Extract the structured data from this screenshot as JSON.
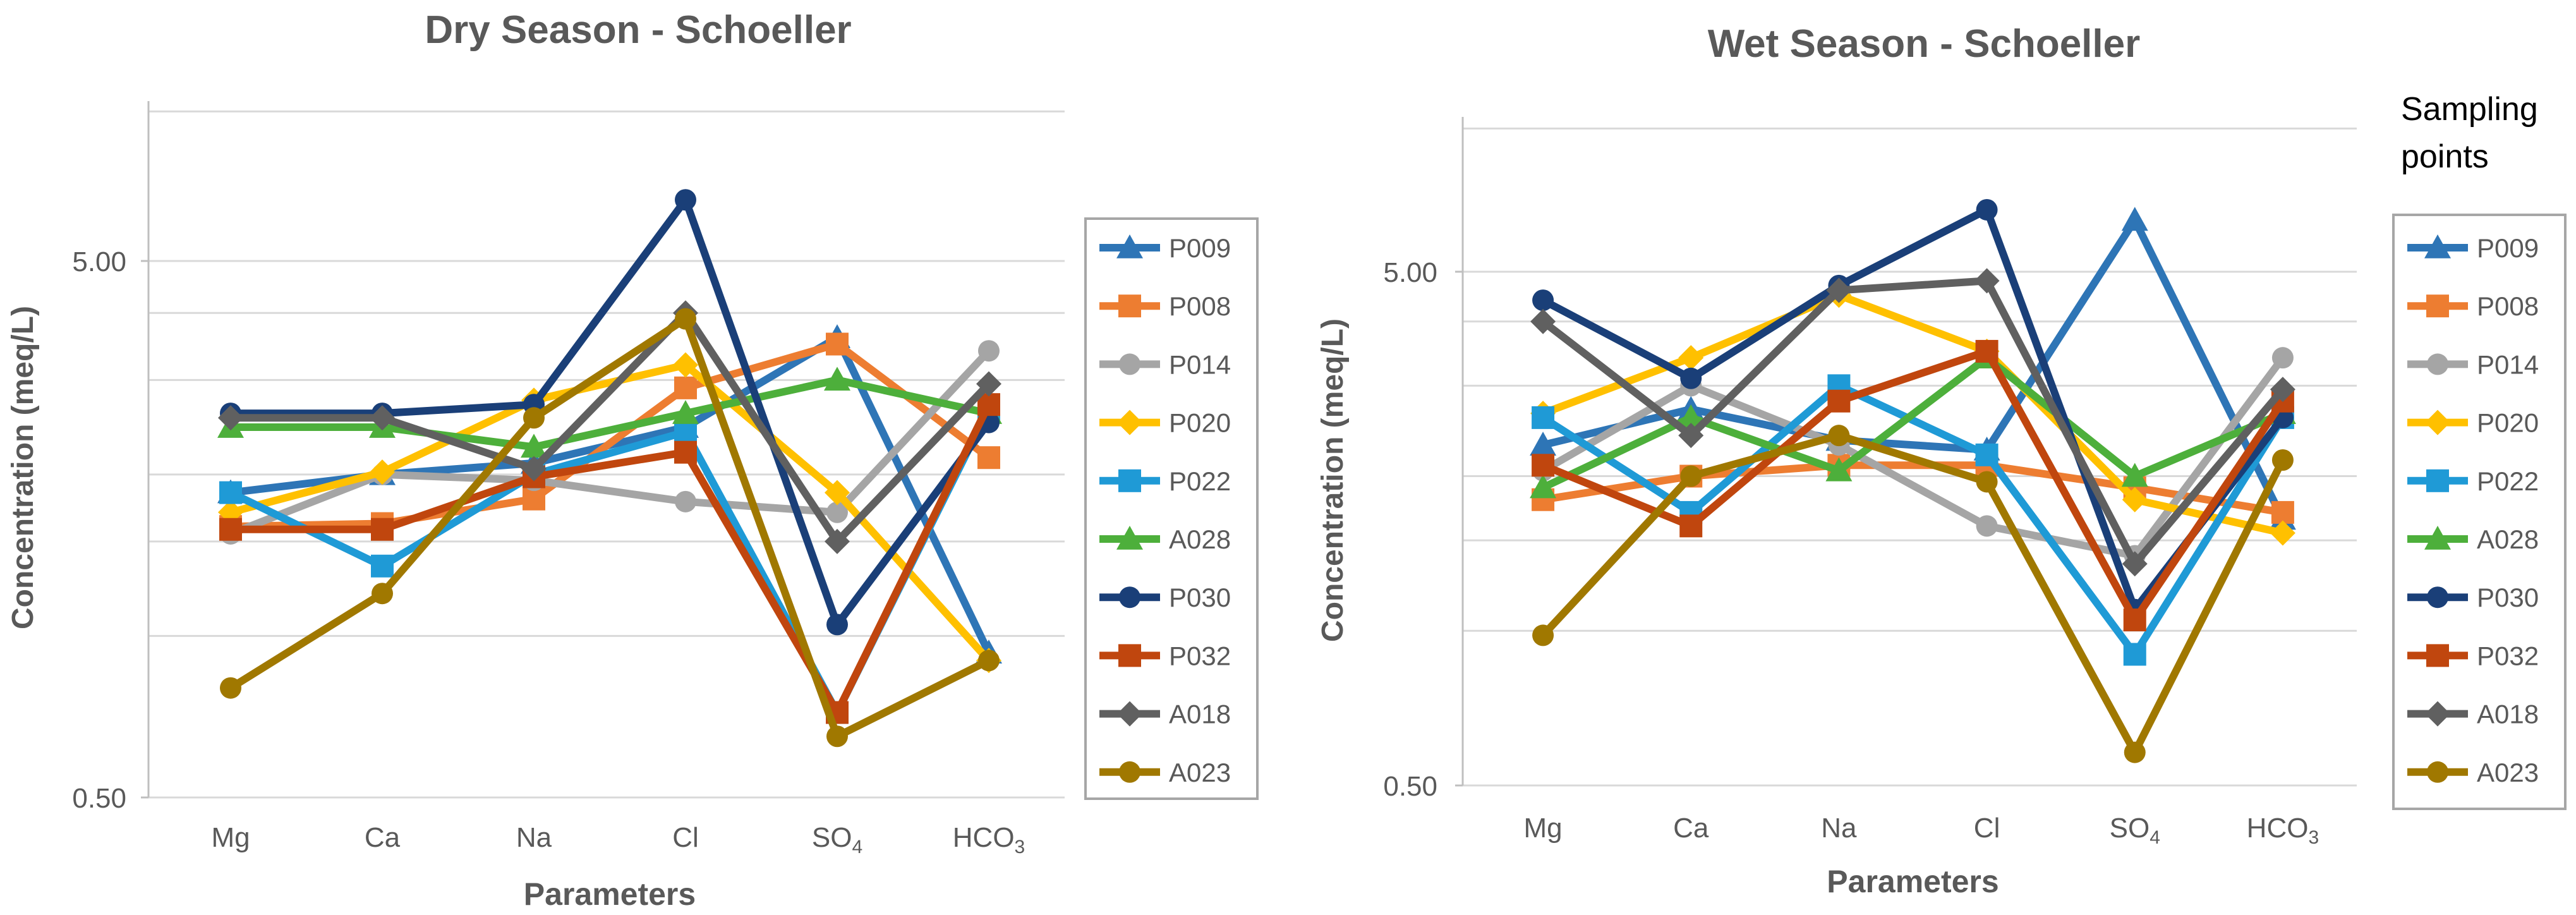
{
  "legend_header": "Sampling points",
  "chart_data": [
    {
      "type": "line",
      "title": "Dry Season - Schoeller",
      "xlabel": "Parameters",
      "ylabel": "Concentration (meq/L)",
      "yscale": "log",
      "ylim": [
        0.5,
        10
      ],
      "yticks": [
        0.5,
        5
      ],
      "ytick_labels": [
        "0.50",
        "5.00"
      ],
      "categories": [
        "Mg",
        "Ca",
        "Na",
        "Cl",
        "SO",
        "HCO"
      ],
      "category_subscripts": [
        "",
        "",
        "",
        "",
        "4",
        "3"
      ],
      "series": [
        {
          "name": "P009",
          "color": "#2e75b6",
          "marker": "triangle",
          "values": [
            1.85,
            2.0,
            2.1,
            2.45,
            3.6,
            0.93
          ]
        },
        {
          "name": "P008",
          "color": "#ed7d31",
          "marker": "square",
          "values": [
            1.6,
            1.62,
            1.8,
            2.9,
            3.5,
            2.15
          ]
        },
        {
          "name": "P014",
          "color": "#a5a5a5",
          "marker": "circle",
          "values": [
            1.55,
            2.0,
            1.95,
            1.78,
            1.7,
            3.4
          ]
        },
        {
          "name": "P020",
          "color": "#ffc000",
          "marker": "diamond",
          "values": [
            1.7,
            2.02,
            2.75,
            3.2,
            1.85,
            0.9
          ]
        },
        {
          "name": "P022",
          "color": "#1f9ad6",
          "marker": "square",
          "values": [
            1.85,
            1.35,
            2.0,
            2.4,
            0.72,
            2.65
          ]
        },
        {
          "name": "A028",
          "color": "#4daf3b",
          "marker": "triangle",
          "values": [
            2.45,
            2.45,
            2.25,
            2.6,
            3.0,
            2.6
          ]
        },
        {
          "name": "P030",
          "color": "#1a3f78",
          "marker": "circle",
          "values": [
            2.6,
            2.6,
            2.7,
            6.5,
            1.05,
            2.5
          ]
        },
        {
          "name": "P032",
          "color": "#c0460e",
          "marker": "square",
          "values": [
            1.58,
            1.58,
            1.98,
            2.2,
            0.72,
            2.7
          ]
        },
        {
          "name": "A018",
          "color": "#606060",
          "marker": "diamond",
          "values": [
            2.55,
            2.55,
            2.05,
            4.0,
            1.5,
            2.95
          ]
        },
        {
          "name": "A023",
          "color": "#a07800",
          "marker": "circle",
          "values": [
            0.8,
            1.2,
            2.55,
            3.9,
            0.65,
            0.9
          ]
        }
      ]
    },
    {
      "type": "line",
      "title": "Wet Season - Schoeller",
      "xlabel": "Parameters",
      "ylabel": "Concentration (meq/L)",
      "yscale": "log",
      "ylim": [
        0.5,
        10
      ],
      "yticks": [
        0.5,
        5
      ],
      "ytick_labels": [
        "0.50",
        "5.00"
      ],
      "categories": [
        "Mg",
        "Ca",
        "Na",
        "Cl",
        "SO",
        "HCO"
      ],
      "category_subscripts": [
        "",
        "",
        "",
        "",
        "4",
        "3"
      ],
      "series": [
        {
          "name": "P009",
          "color": "#2e75b6",
          "marker": "triangle",
          "values": [
            2.3,
            2.7,
            2.35,
            2.25,
            6.3,
            1.65
          ]
        },
        {
          "name": "P008",
          "color": "#ed7d31",
          "marker": "square",
          "values": [
            1.8,
            2.0,
            2.1,
            2.1,
            1.9,
            1.7
          ]
        },
        {
          "name": "P014",
          "color": "#a5a5a5",
          "marker": "circle",
          "values": [
            2.05,
            3.0,
            2.3,
            1.6,
            1.4,
            3.4
          ]
        },
        {
          "name": "P020",
          "color": "#ffc000",
          "marker": "diamond",
          "values": [
            2.65,
            3.4,
            4.5,
            3.5,
            1.8,
            1.55
          ]
        },
        {
          "name": "P022",
          "color": "#1f9ad6",
          "marker": "square",
          "values": [
            2.6,
            1.7,
            3.0,
            2.2,
            0.9,
            2.6
          ]
        },
        {
          "name": "A028",
          "color": "#4daf3b",
          "marker": "triangle",
          "values": [
            1.9,
            2.6,
            2.05,
            3.4,
            2.0,
            2.65
          ]
        },
        {
          "name": "P030",
          "color": "#1a3f78",
          "marker": "circle",
          "values": [
            4.4,
            3.1,
            4.7,
            6.6,
            1.1,
            2.6
          ]
        },
        {
          "name": "P032",
          "color": "#c0460e",
          "marker": "square",
          "values": [
            2.1,
            1.6,
            2.8,
            3.5,
            1.05,
            2.8
          ]
        },
        {
          "name": "A018",
          "color": "#606060",
          "marker": "diamond",
          "values": [
            4.0,
            2.4,
            4.6,
            4.8,
            1.35,
            2.95
          ]
        },
        {
          "name": "A023",
          "color": "#a07800",
          "marker": "circle",
          "values": [
            0.98,
            2.0,
            2.4,
            1.95,
            0.58,
            2.15
          ]
        }
      ]
    }
  ]
}
